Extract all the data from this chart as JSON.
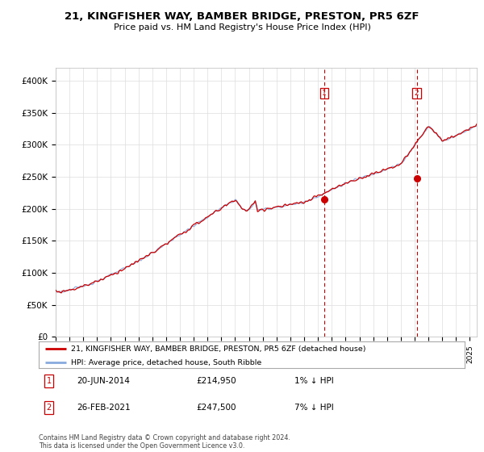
{
  "title": "21, KINGFISHER WAY, BAMBER BRIDGE, PRESTON, PR5 6ZF",
  "subtitle": "Price paid vs. HM Land Registry's House Price Index (HPI)",
  "ylim": [
    0,
    420000
  ],
  "yticks": [
    0,
    50000,
    100000,
    150000,
    200000,
    250000,
    300000,
    350000,
    400000
  ],
  "ytick_labels": [
    "£0",
    "£50K",
    "£100K",
    "£150K",
    "£200K",
    "£250K",
    "£300K",
    "£350K",
    "£400K"
  ],
  "hpi_color": "#88aadd",
  "price_color": "#cc0000",
  "vline_color": "#cc0000",
  "background_color": "#ffffff",
  "grid_color": "#dddddd",
  "legend_label_price": "21, KINGFISHER WAY, BAMBER BRIDGE, PRESTON, PR5 6ZF (detached house)",
  "legend_label_hpi": "HPI: Average price, detached house, South Ribble",
  "annotation1_date": "20-JUN-2014",
  "annotation1_price": "£214,950",
  "annotation1_hpi": "1% ↓ HPI",
  "annotation2_date": "26-FEB-2021",
  "annotation2_price": "£247,500",
  "annotation2_hpi": "7% ↓ HPI",
  "footnote": "Contains HM Land Registry data © Crown copyright and database right 2024.\nThis data is licensed under the Open Government Licence v3.0.",
  "sale1_x": 2014.47,
  "sale1_y": 214950,
  "sale2_x": 2021.15,
  "sale2_y": 247500,
  "xlim_start": 1995,
  "xlim_end": 2025.5
}
